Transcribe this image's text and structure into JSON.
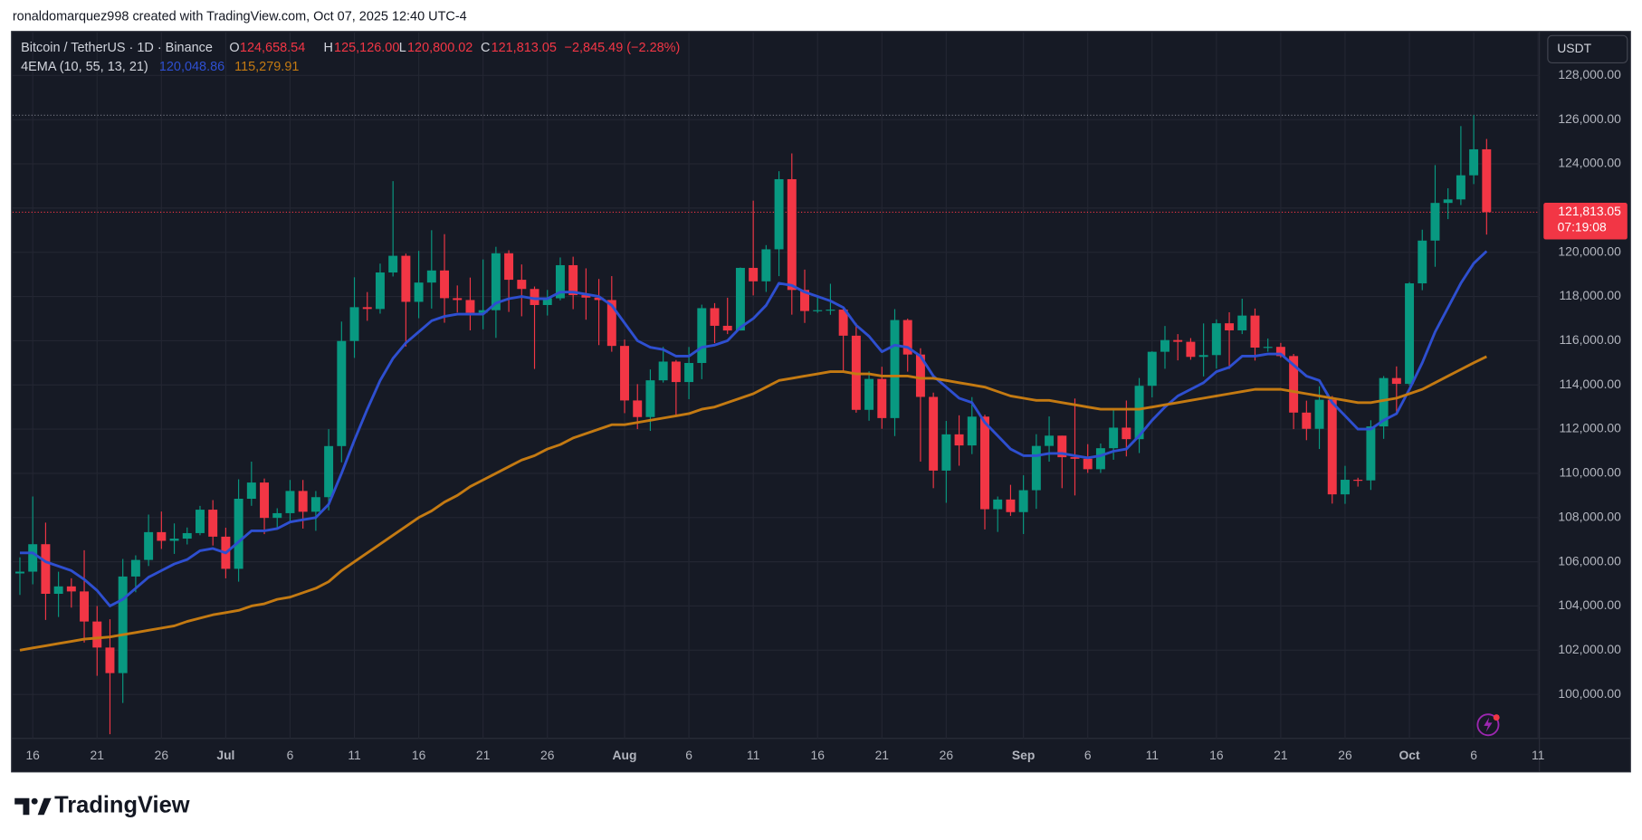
{
  "header": "ronaldomarquez998 created with TradingView.com, Oct 07, 2025 12:40 UTC-4",
  "brand": "TradingView",
  "chart_data": {
    "type": "candlestick",
    "title": "Bitcoin / TetherUS · 1D · Binance",
    "ohlc_legend": [
      {
        "key": "O",
        "value": "124,658.54"
      },
      {
        "key": "H",
        "value": "125,126.00"
      },
      {
        "key": "L",
        "value": "120,800.02"
      },
      {
        "key": "C",
        "value": "121,813.05"
      }
    ],
    "change": "−2,845.49 (−2.28%)",
    "indicator": "4EMA (10, 55, 13, 21)",
    "indicator_values": [
      "120,048.86",
      "115,279.91"
    ],
    "axis_unit": "USDT",
    "current_price": {
      "value": 121813.05,
      "label": "121,813.05"
    },
    "countdown": "07:19:08",
    "high_line": 126199,
    "up_color": "#089981",
    "down_color": "#f23645",
    "categories": [
      "Jun 15",
      "Jun 16",
      "Jun 17",
      "Jun 18",
      "Jun 19",
      "Jun 20",
      "Jun 21",
      "Jun 22",
      "Jun 23",
      "Jun 24",
      "Jun 25",
      "Jun 26",
      "Jun 27",
      "Jun 28",
      "Jun 29",
      "Jun 30",
      "Jul 1",
      "Jul 2",
      "Jul 3",
      "Jul 4",
      "Jul 5",
      "Jul 6",
      "Jul 7",
      "Jul 8",
      "Jul 9",
      "Jul 10",
      "Jul 11",
      "Jul 12",
      "Jul 13",
      "Jul 14",
      "Jul 15",
      "Jul 16",
      "Jul 17",
      "Jul 18",
      "Jul 19",
      "Jul 20",
      "Jul 21",
      "Jul 22",
      "Jul 23",
      "Jul 24",
      "Jul 25",
      "Jul 26",
      "Jul 27",
      "Jul 28",
      "Jul 29",
      "Jul 30",
      "Jul 31",
      "Aug 1",
      "Aug 2",
      "Aug 3",
      "Aug 4",
      "Aug 5",
      "Aug 6",
      "Aug 7",
      "Aug 8",
      "Aug 9",
      "Aug 10",
      "Aug 11",
      "Aug 12",
      "Aug 13",
      "Aug 14",
      "Aug 15",
      "Aug 16",
      "Aug 17",
      "Aug 18",
      "Aug 19",
      "Aug 20",
      "Aug 21",
      "Aug 22",
      "Aug 23",
      "Aug 24",
      "Aug 25",
      "Aug 26",
      "Aug 27",
      "Aug 28",
      "Aug 29",
      "Aug 30",
      "Aug 31",
      "Sep 1",
      "Sep 2",
      "Sep 3",
      "Sep 4",
      "Sep 5",
      "Sep 6",
      "Sep 7",
      "Sep 8",
      "Sep 9",
      "Sep 10",
      "Sep 11",
      "Sep 12",
      "Sep 13",
      "Sep 14",
      "Sep 15",
      "Sep 16",
      "Sep 17",
      "Sep 18",
      "Sep 19",
      "Sep 20",
      "Sep 21",
      "Sep 22",
      "Sep 23",
      "Sep 24",
      "Sep 25",
      "Sep 26",
      "Sep 27",
      "Sep 28",
      "Sep 29",
      "Sep 30",
      "Oct 1",
      "Oct 2",
      "Oct 3",
      "Oct 4",
      "Oct 5",
      "Oct 6",
      "Oct 7"
    ],
    "open": [
      105472,
      105553,
      106794,
      104551,
      104886,
      104658,
      103297,
      102120,
      100963,
      105333,
      106083,
      107340,
      106948,
      107047,
      107296,
      108356,
      107135,
      105681,
      108850,
      109584,
      107984,
      108198,
      109203,
      108262,
      108922,
      111233,
      115987,
      117516,
      117435,
      119086,
      119841,
      117758,
      118630,
      119177,
      117924,
      117840,
      117265,
      117380,
      119954,
      118756,
      118340,
      117614,
      117919,
      119416,
      118062,
      117950,
      117840,
      115764,
      113297,
      112546,
      114208,
      115055,
      114129,
      114992,
      117472,
      116674,
      116462,
      119294,
      118686,
      120134,
      123306,
      118295,
      117342,
      117380,
      117405,
      116227,
      112872,
      114271,
      112500,
      116935,
      115374,
      113458,
      110124,
      111763,
      111262,
      112566,
      108377,
      108816,
      108246,
      109237,
      111240,
      111705,
      110730,
      110659,
      110187,
      111137,
      112066,
      111546,
      113960,
      115499,
      116029,
      115950,
      115268,
      115349,
      116788,
      116468,
      117137,
      115688,
      115721,
      115306,
      112748,
      112014,
      113329,
      109049,
      109709,
      109681,
      112122,
      114310,
      114048,
      118594,
      120529,
      122232,
      122391,
      123482,
      124658.54
    ],
    "high": [
      106200,
      108952,
      107771,
      105550,
      105250,
      106524,
      104000,
      103400,
      106128,
      106290,
      108135,
      108272,
      107735,
      107550,
      108528,
      108789,
      107540,
      109730,
      110530,
      109765,
      108420,
      109700,
      109700,
      109200,
      111999,
      116868,
      118869,
      118200,
      119488,
      123218,
      119940,
      120063,
      120998,
      120820,
      118499,
      118856,
      119676,
      120247,
      120090,
      119450,
      118451,
      118297,
      119766,
      119800,
      119273,
      118792,
      118922,
      116052,
      114036,
      114700,
      115720,
      115127,
      115716,
      117630,
      117700,
      117944,
      119311,
      122335,
      120324,
      123667,
      124474,
      119216,
      117999,
      118575,
      117543,
      116800,
      114616,
      114821,
      117429,
      117000,
      115660,
      113651,
      112371,
      112625,
      113450,
      112651,
      108952,
      109480,
      109912,
      111771,
      112575,
      111705,
      113384,
      111320,
      111350,
      112900,
      113293,
      114313,
      115520,
      116665,
      116298,
      116118,
      116781,
      116964,
      117286,
      117900,
      117455,
      116100,
      115900,
      115400,
      113287,
      113940,
      113500,
      110340,
      109800,
      112400,
      114400,
      114837,
      118649,
      121022,
      123944,
      122896,
      125708,
      126199,
      125126
    ],
    "low": [
      104500,
      104980,
      103371,
      103500,
      103929,
      102345,
      100838,
      98200,
      99613,
      104622,
      105808,
      106579,
      106356,
      106783,
      107200,
      106733,
      105250,
      105100,
      108530,
      107250,
      107500,
      107800,
      107500,
      107400,
      108324,
      110500,
      115222,
      116900,
      117224,
      118905,
      115736,
      117017,
      117453,
      116812,
      117277,
      116467,
      116515,
      116128,
      117301,
      117103,
      114723,
      117138,
      117825,
      117427,
      116950,
      115800,
      115500,
      112722,
      112000,
      111920,
      114107,
      112650,
      113356,
      114259,
      115891,
      116299,
      116460,
      118050,
      118207,
      118920,
      117180,
      116803,
      117257,
      117172,
      114640,
      112744,
      112380,
      112015,
      111684,
      114600,
      110531,
      109329,
      108666,
      110345,
      110870,
      107463,
      107350,
      108076,
      107255,
      108393,
      110528,
      109329,
      109000,
      110019,
      110019,
      110615,
      110766,
      110917,
      113437,
      114730,
      115110,
      115138,
      114384,
      114737,
      114720,
      116300,
      115100,
      115500,
      115230,
      112000,
      111500,
      111100,
      108631,
      108620,
      109400,
      109250,
      111560,
      112656,
      113970,
      118284,
      119344,
      121500,
      122136,
      123084,
      120800.02
    ],
    "close": [
      105553,
      106794,
      104551,
      104886,
      104658,
      103297,
      102120,
      100963,
      105333,
      106083,
      107340,
      106948,
      107047,
      107296,
      108356,
      107135,
      105681,
      108850,
      109584,
      107984,
      108198,
      109203,
      108262,
      108922,
      111233,
      115987,
      117516,
      117435,
      119086,
      119841,
      117758,
      118630,
      119177,
      117924,
      117840,
      117265,
      117380,
      119954,
      118756,
      118340,
      117614,
      117919,
      119416,
      118062,
      117950,
      117840,
      115764,
      113297,
      112546,
      114208,
      115055,
      114129,
      114992,
      117472,
      116674,
      116462,
      119294,
      118686,
      120134,
      123306,
      118295,
      117342,
      117380,
      117405,
      116227,
      112872,
      114271,
      112500,
      116935,
      115374,
      113458,
      110124,
      111763,
      111262,
      112566,
      108377,
      108816,
      108246,
      109237,
      111240,
      111705,
      110730,
      110659,
      110187,
      111137,
      112066,
      111546,
      113960,
      115499,
      116029,
      115950,
      115268,
      115349,
      116788,
      116468,
      117137,
      115688,
      115721,
      115306,
      112748,
      112014,
      113329,
      109049,
      109709,
      109681,
      112122,
      114310,
      114048,
      118594,
      120529,
      122232,
      122391,
      123482,
      124658.54,
      121813.05
    ],
    "overlays": [
      {
        "color": "#2e4fd0",
        "values": [
          106400,
          106400,
          106000,
          105800,
          105600,
          105200,
          104700,
          104000,
          104300,
          104800,
          105300,
          105600,
          105900,
          106100,
          106500,
          106600,
          106400,
          106900,
          107400,
          107400,
          107500,
          107800,
          107900,
          108000,
          108600,
          110000,
          111500,
          112900,
          114200,
          115200,
          115900,
          116400,
          116900,
          117100,
          117200,
          117200,
          117200,
          117700,
          117900,
          118000,
          117900,
          117900,
          118200,
          118200,
          118100,
          118000,
          117600,
          116800,
          116000,
          115700,
          115600,
          115300,
          115300,
          115700,
          115800,
          116000,
          116600,
          117000,
          117600,
          118600,
          118500,
          118200,
          118000,
          117800,
          117500,
          116700,
          116200,
          115500,
          115800,
          115700,
          115300,
          114400,
          113900,
          113400,
          113200,
          112300,
          111700,
          111100,
          110800,
          110800,
          110900,
          110900,
          110800,
          110700,
          110800,
          111000,
          111100,
          111700,
          112400,
          113000,
          113500,
          113800,
          114100,
          114600,
          114800,
          115300,
          115300,
          115400,
          115400,
          114900,
          114400,
          114200,
          113200,
          112600,
          112000,
          112000,
          112400,
          112700,
          113800,
          115000,
          116400,
          117500,
          118600,
          119500,
          120048.86
        ]
      },
      {
        "color": "#c47a12",
        "values": [
          102000,
          102100,
          102200,
          102300,
          102400,
          102500,
          102550,
          102600,
          102700,
          102800,
          102900,
          103000,
          103100,
          103300,
          103450,
          103600,
          103700,
          103800,
          104000,
          104100,
          104300,
          104400,
          104600,
          104800,
          105100,
          105600,
          106000,
          106400,
          106800,
          107200,
          107600,
          108000,
          108300,
          108700,
          109000,
          109400,
          109700,
          110000,
          110300,
          110600,
          110800,
          111100,
          111300,
          111600,
          111800,
          112000,
          112200,
          112200,
          112300,
          112400,
          112500,
          112600,
          112700,
          112900,
          113000,
          113200,
          113400,
          113600,
          113900,
          114200,
          114300,
          114400,
          114500,
          114600,
          114600,
          114500,
          114500,
          114400,
          114400,
          114400,
          114300,
          114300,
          114200,
          114100,
          114000,
          113900,
          113700,
          113500,
          113400,
          113300,
          113300,
          113200,
          113100,
          113000,
          112900,
          112900,
          112900,
          112900,
          113000,
          113100,
          113200,
          113300,
          113400,
          113500,
          113600,
          113700,
          113800,
          113800,
          113800,
          113700,
          113600,
          113500,
          113400,
          113300,
          113200,
          113200,
          113300,
          113400,
          113600,
          113800,
          114100,
          114400,
          114700,
          115000,
          115279.91
        ]
      }
    ],
    "ylim": [
      98000,
      130000
    ],
    "yticks": [
      {
        "value": 100000,
        "label": "100,000.00"
      },
      {
        "value": 102000,
        "label": "102,000.00"
      },
      {
        "value": 104000,
        "label": "104,000.00"
      },
      {
        "value": 106000,
        "label": "106,000.00"
      },
      {
        "value": 108000,
        "label": "108,000.00"
      },
      {
        "value": 110000,
        "label": "110,000.00"
      },
      {
        "value": 112000,
        "label": "112,000.00"
      },
      {
        "value": 114000,
        "label": "114,000.00"
      },
      {
        "value": 116000,
        "label": "116,000.00"
      },
      {
        "value": 118000,
        "label": "118,000.00"
      },
      {
        "value": 120000,
        "label": "120,000.00"
      },
      {
        "value": 122000,
        "label": "122,000.00"
      },
      {
        "value": 124000,
        "label": "124,000.00"
      },
      {
        "value": 126000,
        "label": "126,000.00"
      },
      {
        "value": 128000,
        "label": "128,000.00"
      }
    ],
    "xticks": [
      {
        "value": "Jun 16",
        "label": "16"
      },
      {
        "value": "Jun 21",
        "label": "21"
      },
      {
        "value": "Jun 26",
        "label": "26"
      },
      {
        "value": "Jul 1",
        "label": "Jul"
      },
      {
        "value": "Jul 6",
        "label": "6"
      },
      {
        "value": "Jul 11",
        "label": "11"
      },
      {
        "value": "Jul 16",
        "label": "16"
      },
      {
        "value": "Jul 21",
        "label": "21"
      },
      {
        "value": "Jul 26",
        "label": "26"
      },
      {
        "value": "Aug 1",
        "label": "Aug"
      },
      {
        "value": "Aug 6",
        "label": "6"
      },
      {
        "value": "Aug 11",
        "label": "11"
      },
      {
        "value": "Aug 16",
        "label": "16"
      },
      {
        "value": "Aug 21",
        "label": "21"
      },
      {
        "value": "Aug 26",
        "label": "26"
      },
      {
        "value": "Sep 1",
        "label": "Sep"
      },
      {
        "value": "Sep 6",
        "label": "6"
      },
      {
        "value": "Sep 11",
        "label": "11"
      },
      {
        "value": "Sep 16",
        "label": "16"
      },
      {
        "value": "Sep 21",
        "label": "21"
      },
      {
        "value": "Sep 26",
        "label": "26"
      },
      {
        "value": "Oct 1",
        "label": "Oct"
      },
      {
        "value": "Oct 6",
        "label": "6"
      },
      {
        "value": "Oct 11",
        "label": "11"
      }
    ],
    "grid": true
  }
}
